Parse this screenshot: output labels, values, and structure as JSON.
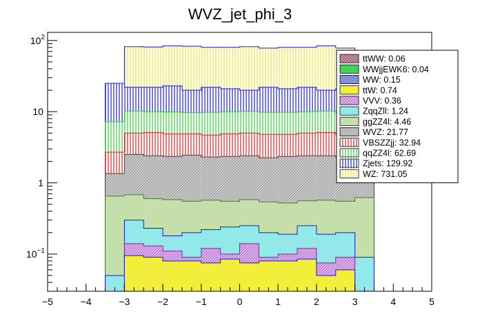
{
  "chart_data": {
    "type": "bar",
    "title": "WVZ_jet_phi_3",
    "xlabel": "",
    "ylabel": "",
    "stacked": true,
    "log_y": true,
    "xlim": [
      -5,
      5
    ],
    "ylim": [
      0.03,
      130
    ],
    "grid": false,
    "legend_position": "top-right",
    "x_ticks": [
      "−5",
      "−4",
      "−3",
      "−2",
      "−1",
      "0",
      "1",
      "2",
      "3",
      "4",
      "5"
    ],
    "y_ticks": [
      {
        "base": "10",
        "exp": "2",
        "value": 100
      },
      {
        "base": "10",
        "exp": "",
        "value": 10
      },
      {
        "base": "1",
        "exp": "",
        "value": 1
      },
      {
        "base": "10",
        "exp": "−1",
        "value": 0.1
      }
    ],
    "bin_edges": [
      -3.5,
      -3.0,
      -2.5,
      -2.0,
      -1.5,
      -1.0,
      -0.5,
      0.0,
      0.5,
      1.0,
      1.5,
      2.0,
      2.5,
      3.0,
      3.5
    ],
    "stack_order_bottom_to_top": [
      "WZ",
      "Zjets",
      "qqZZ4l",
      "VBSZZjj",
      "WVZ",
      "ggZZ4l",
      "ZqqZll",
      "VVV",
      "ttW",
      "WW",
      "WWjjEWK6",
      "ttWW"
    ],
    "cumulative_top": [
      {
        "name": "WZ",
        "values": [
          0.03,
          0.095,
          0.09,
          0.08,
          0.08,
          0.075,
          0.085,
          0.075,
          0.08,
          0.08,
          0.085,
          0.05,
          0.06,
          0.03
        ]
      },
      {
        "name": "VVV",
        "values": [
          0.03,
          0.14,
          0.13,
          0.11,
          0.09,
          0.12,
          0.1,
          0.14,
          0.09,
          0.1,
          0.12,
          0.075,
          0.09,
          0.03
        ]
      },
      {
        "name": "ZqqZll",
        "values": [
          0.05,
          0.3,
          0.23,
          0.18,
          0.2,
          0.22,
          0.24,
          0.25,
          0.2,
          0.19,
          0.25,
          0.19,
          0.2,
          0.09
        ]
      },
      {
        "name": "ggZZ4l",
        "values": [
          0.65,
          0.68,
          0.6,
          0.58,
          0.55,
          0.57,
          0.55,
          0.58,
          0.54,
          0.52,
          0.56,
          0.57,
          0.55,
          0.62
        ]
      },
      {
        "name": "WVZ",
        "values": [
          1.35,
          2.5,
          2.4,
          2.35,
          2.45,
          2.3,
          2.35,
          2.4,
          2.25,
          2.35,
          2.4,
          2.4,
          2.3,
          1.3
        ]
      },
      {
        "name": "VBSZZjj",
        "values": [
          2.7,
          5.0,
          5.1,
          4.9,
          4.9,
          4.7,
          4.9,
          5.0,
          4.8,
          4.8,
          5.0,
          5.1,
          4.8,
          2.7
        ]
      },
      {
        "name": "qqZZ4l",
        "values": [
          7.2,
          10.2,
          10.0,
          9.9,
          9.7,
          9.8,
          10.0,
          10.1,
          9.8,
          9.8,
          10.0,
          10.2,
          9.8,
          7.0
        ]
      },
      {
        "name": "Zjets",
        "values": [
          25,
          22,
          22,
          23,
          20,
          22,
          21,
          20,
          22,
          21,
          22,
          20,
          21,
          25
        ]
      },
      {
        "name": "WZ_total",
        "values": [
          25,
          82,
          81,
          84,
          83,
          80,
          80,
          82,
          78,
          80,
          80,
          84,
          78,
          25
        ]
      }
    ],
    "legend": [
      {
        "label": "ttWW: 0.06",
        "color": "#a0566a",
        "pattern": "cross"
      },
      {
        "label": "WWjjEWK6: 0.04",
        "color": "#3fd454",
        "pattern": "solid"
      },
      {
        "label": "WW: 0.15",
        "color": "#3240c7",
        "pattern": "diag"
      },
      {
        "label": "ttW: 0.74",
        "color": "#f2ee3a",
        "pattern": "solid"
      },
      {
        "label": "VVV: 0.36",
        "color": "#b552d6",
        "pattern": "diag"
      },
      {
        "label": "ZqqZll: 1.24",
        "color": "#38e0e0",
        "pattern": "diag"
      },
      {
        "label": "ggZZ4l: 4.46",
        "color": "#99cc66",
        "pattern": "diag"
      },
      {
        "label": "WVZ: 21.77",
        "color": "#8a8a8a",
        "pattern": "diag"
      },
      {
        "label": "VBSZZjj: 32.94",
        "color": "#d92020",
        "pattern": "vlines"
      },
      {
        "label": "qqZZ4l: 62.69",
        "color": "#33cc33",
        "pattern": "vlines"
      },
      {
        "label": "Zjets: 129.92",
        "color": "#1a1ad6",
        "pattern": "vlines"
      },
      {
        "label": "WZ: 731.05",
        "color": "#f0e030",
        "pattern": "vlines"
      }
    ],
    "layer_style": {
      "WZ_total": {
        "color": "#f0e030",
        "stroke": "#1a1ad6",
        "pattern": "vlines"
      },
      "Zjets": {
        "color": "#1a1ad6",
        "stroke": "#1a1ad6",
        "pattern": "vlines"
      },
      "qqZZ4l": {
        "color": "#33cc33",
        "stroke": "#33cc33",
        "pattern": "vlines"
      },
      "VBSZZjj": {
        "color": "#d92020",
        "stroke": "#d92020",
        "pattern": "vlines"
      },
      "WVZ": {
        "color": "#8a8a8a",
        "stroke": "#444444",
        "pattern": "diag"
      },
      "ggZZ4l": {
        "color": "#99cc66",
        "stroke": "#447733",
        "pattern": "diag"
      },
      "ZqqZll": {
        "color": "#38e0e0",
        "stroke": "#1a1ad6",
        "pattern": "diag"
      },
      "VVV": {
        "color": "#b552d6",
        "stroke": "#7a2a90",
        "pattern": "diag"
      },
      "WZ": {
        "color": "#f2ee3a",
        "stroke": "#1a1ad6",
        "pattern": "solid"
      }
    }
  }
}
